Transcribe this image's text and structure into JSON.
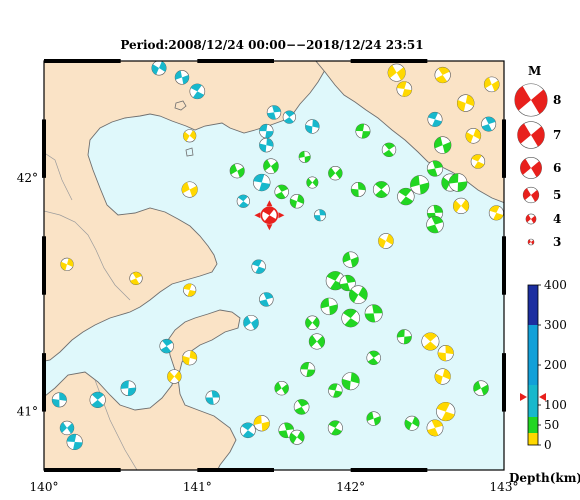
{
  "title": "Period:2008/12/24 00:00−−2018/12/24 23:51",
  "map": {
    "lon_range": [
      140,
      143
    ],
    "lat_range": [
      40.75,
      42.5
    ],
    "x_ticks": [
      {
        "v": 140,
        "label": "140°"
      },
      {
        "v": 141,
        "label": "141°"
      },
      {
        "v": 142,
        "label": "142°"
      },
      {
        "v": 143,
        "label": "143°"
      }
    ],
    "y_ticks": [
      {
        "v": 41,
        "label": "41°"
      },
      {
        "v": 42,
        "label": "42°"
      }
    ],
    "land_color": "#fae3c6",
    "sea_color": "#dff8fb",
    "main_event": {
      "lon": 141.47,
      "lat": 41.84,
      "color": "#e8201c"
    }
  },
  "magnitude_legend": {
    "title": "M",
    "items": [
      {
        "m": 8,
        "label": "8"
      },
      {
        "m": 7,
        "label": "7"
      },
      {
        "m": 6,
        "label": "6"
      },
      {
        "m": 5,
        "label": "5"
      },
      {
        "m": 4,
        "label": "4"
      },
      {
        "m": 3,
        "label": "3"
      }
    ],
    "color": "#e8201c"
  },
  "depth_legend": {
    "title": "Depth(km)",
    "range": [
      0,
      400
    ],
    "ticks": [
      {
        "v": 0,
        "label": "0"
      },
      {
        "v": 50,
        "label": "50"
      },
      {
        "v": 100,
        "label": "100"
      },
      {
        "v": 200,
        "label": "200"
      },
      {
        "v": 300,
        "label": "300"
      },
      {
        "v": 400,
        "label": "400"
      }
    ],
    "bands": [
      {
        "from": 0,
        "to": 30,
        "color": "#ffd800"
      },
      {
        "from": 30,
        "to": 70,
        "color": "#22d622"
      },
      {
        "from": 70,
        "to": 150,
        "color": "#18b8cc"
      },
      {
        "from": 150,
        "to": 300,
        "color": "#12a0d8"
      },
      {
        "from": 300,
        "to": 400,
        "color": "#1c2ea0"
      }
    ],
    "marker_depth": 120,
    "marker_color": "#e8201c"
  },
  "chart_data": {
    "type": "scatter",
    "title": "Period:2008/12/24 00:00−−2018/12/24 23:51",
    "xlabel": "",
    "ylabel": "",
    "xlim": [
      140,
      143
    ],
    "ylim": [
      40.75,
      42.5
    ],
    "fields": [
      "lon",
      "lat",
      "depth_km",
      "magnitude"
    ],
    "events": [
      [
        141.45,
        42.2,
        110,
        4.0
      ],
      [
        141.6,
        42.26,
        95,
        3.8
      ],
      [
        141.75,
        42.22,
        80,
        4.0
      ],
      [
        142.3,
        42.45,
        20,
        4.6
      ],
      [
        142.35,
        42.38,
        25,
        4.2
      ],
      [
        142.6,
        42.44,
        15,
        4.3
      ],
      [
        142.75,
        42.32,
        18,
        4.5
      ],
      [
        142.92,
        42.4,
        20,
        4.2
      ],
      [
        142.55,
        42.25,
        130,
        4.1
      ],
      [
        142.9,
        42.23,
        100,
        4.1
      ],
      [
        142.8,
        42.18,
        12,
        4.2
      ],
      [
        142.6,
        42.14,
        55,
        4.5
      ],
      [
        142.83,
        42.07,
        15,
        4.0
      ],
      [
        142.55,
        42.04,
        45,
        4.3
      ],
      [
        142.65,
        41.98,
        40,
        4.6
      ],
      [
        142.45,
        41.97,
        45,
        4.8
      ],
      [
        142.36,
        41.92,
        50,
        4.5
      ],
      [
        142.55,
        41.85,
        60,
        4.3
      ],
      [
        142.72,
        41.88,
        20,
        4.3
      ],
      [
        142.7,
        41.98,
        50,
        4.7
      ],
      [
        142.2,
        41.95,
        45,
        4.4
      ],
      [
        142.05,
        41.95,
        55,
        4.1
      ],
      [
        141.9,
        42.02,
        40,
        4.0
      ],
      [
        142.08,
        42.2,
        50,
        4.1
      ],
      [
        142.25,
        42.12,
        45,
        4.0
      ],
      [
        141.45,
        42.14,
        140,
        4.0
      ],
      [
        141.48,
        42.05,
        60,
        4.2
      ],
      [
        141.42,
        41.98,
        110,
        4.5
      ],
      [
        141.55,
        41.94,
        45,
        4.0
      ],
      [
        141.65,
        41.9,
        55,
        4.0
      ],
      [
        141.26,
        42.03,
        40,
        4.1
      ],
      [
        142.95,
        41.85,
        15,
        4.1
      ],
      [
        142.55,
        41.8,
        30,
        4.5
      ],
      [
        142.23,
        41.73,
        15,
        4.2
      ],
      [
        142.0,
        41.65,
        50,
        4.3
      ],
      [
        141.9,
        41.56,
        50,
        4.8
      ],
      [
        141.98,
        41.55,
        45,
        4.3
      ],
      [
        142.05,
        41.5,
        55,
        4.7
      ],
      [
        141.86,
        41.45,
        60,
        4.5
      ],
      [
        142.0,
        41.4,
        50,
        4.7
      ],
      [
        142.15,
        41.42,
        60,
        4.6
      ],
      [
        141.75,
        41.38,
        45,
        4.0
      ],
      [
        142.35,
        41.32,
        60,
        4.1
      ],
      [
        142.52,
        41.3,
        20,
        4.6
      ],
      [
        142.62,
        41.25,
        15,
        4.3
      ],
      [
        141.78,
        41.3,
        55,
        4.3
      ],
      [
        141.72,
        41.18,
        30,
        4.1
      ],
      [
        142.15,
        41.23,
        55,
        4.0
      ],
      [
        142.0,
        41.13,
        40,
        4.6
      ],
      [
        141.55,
        41.1,
        45,
        4.0
      ],
      [
        141.9,
        41.09,
        40,
        4.0
      ],
      [
        141.68,
        41.02,
        60,
        4.2
      ],
      [
        142.6,
        41.15,
        20,
        4.3
      ],
      [
        142.85,
        41.1,
        30,
        4.2
      ],
      [
        142.62,
        41.0,
        20,
        4.8
      ],
      [
        142.55,
        40.93,
        15,
        4.4
      ],
      [
        142.4,
        40.95,
        50,
        4.1
      ],
      [
        142.15,
        40.97,
        45,
        4.0
      ],
      [
        141.9,
        40.93,
        50,
        4.1
      ],
      [
        141.58,
        40.92,
        40,
        4.2
      ],
      [
        141.65,
        40.89,
        60,
        4.1
      ],
      [
        141.42,
        40.95,
        25,
        4.3
      ],
      [
        141.33,
        40.92,
        110,
        4.2
      ],
      [
        141.1,
        41.06,
        130,
        4.0
      ],
      [
        140.85,
        41.15,
        15,
        4.0
      ],
      [
        140.55,
        41.1,
        110,
        4.2
      ],
      [
        140.35,
        41.05,
        110,
        4.3
      ],
      [
        140.1,
        41.05,
        120,
        4.1
      ],
      [
        140.15,
        40.93,
        120,
        4.0
      ],
      [
        140.2,
        40.87,
        130,
        4.3
      ],
      [
        140.8,
        41.28,
        90,
        4.0
      ],
      [
        140.95,
        41.23,
        20,
        4.1
      ],
      [
        141.35,
        41.38,
        105,
        4.2
      ],
      [
        140.95,
        41.52,
        20,
        3.8
      ],
      [
        140.6,
        41.57,
        25,
        3.8
      ],
      [
        140.15,
        41.63,
        15,
        3.8
      ],
      [
        140.95,
        41.95,
        20,
        4.3
      ],
      [
        141.4,
        41.62,
        100,
        4.0
      ],
      [
        141.45,
        41.48,
        110,
        4.0
      ],
      [
        140.75,
        42.47,
        90,
        4.1
      ],
      [
        140.9,
        42.43,
        120,
        4.0
      ],
      [
        141.0,
        42.37,
        140,
        4.2
      ],
      [
        141.5,
        42.28,
        85,
        4.0
      ],
      [
        140.95,
        42.18,
        20,
        3.8
      ],
      [
        141.7,
        42.09,
        45,
        3.6
      ],
      [
        141.3,
        41.9,
        120,
        3.8
      ],
      [
        141.8,
        41.84,
        70,
        3.6
      ],
      [
        141.75,
        41.98,
        45,
        3.6
      ]
    ]
  }
}
